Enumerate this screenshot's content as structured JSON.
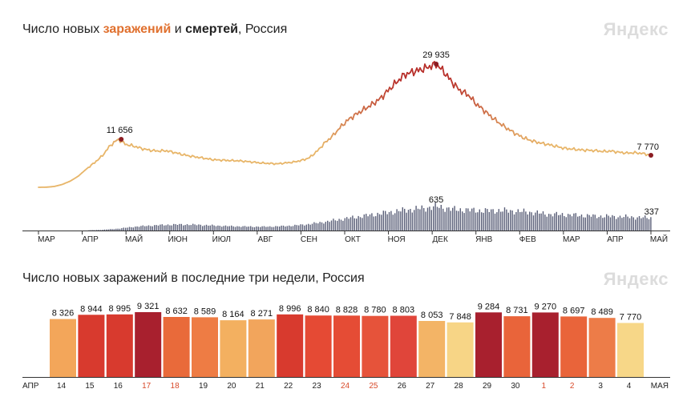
{
  "chart1": {
    "title_prefix": "Число новых ",
    "title_cases": "заражений",
    "title_mid": " и ",
    "title_deaths": "смертей",
    "title_suffix": ", Россия",
    "brand": "Яндекс"
  },
  "chart2": {
    "title": "Число новых заражений в последние три недели, Россия",
    "brand": "Яндекс"
  },
  "colors": {
    "cases_low": "#e8b66a",
    "cases_high": "#b8312c",
    "deaths_bar": "#5a5f78",
    "marker": "#8b1c22",
    "weekend_label": "#d84a2a",
    "axis": "#333333"
  },
  "chart_data": [
    {
      "type": "line",
      "title": "Число новых заражений и смертей, Россия",
      "series": [
        {
          "name": "Новые заражения",
          "weekly_points": [
            [
              0,
              0
            ],
            [
              0.25,
              30
            ],
            [
              0.5,
              200
            ],
            [
              0.75,
              700
            ],
            [
              1,
              1500
            ],
            [
              1.25,
              2700
            ],
            [
              1.5,
              4400
            ],
            [
              1.75,
              5900
            ],
            [
              2,
              7600
            ],
            [
              2.25,
              10100
            ],
            [
              2.5,
              11656
            ],
            [
              2.75,
              10400
            ],
            [
              3,
              10000
            ],
            [
              3.25,
              9400
            ],
            [
              3.5,
              9000
            ],
            [
              3.75,
              8800
            ],
            [
              4,
              8900
            ],
            [
              4.25,
              8500
            ],
            [
              4.5,
              8000
            ],
            [
              4.75,
              7600
            ],
            [
              5,
              7300
            ],
            [
              5.25,
              7000
            ],
            [
              5.5,
              6700
            ],
            [
              5.75,
              6600
            ],
            [
              6,
              6500
            ],
            [
              6.25,
              6450
            ],
            [
              6.5,
              6300
            ],
            [
              6.75,
              6100
            ],
            [
              7,
              5900
            ],
            [
              7.25,
              5800
            ],
            [
              7.5,
              5700
            ],
            [
              7.75,
              5900
            ],
            [
              8,
              6100
            ],
            [
              8.25,
              6500
            ],
            [
              8.5,
              7100
            ],
            [
              8.75,
              8700
            ],
            [
              9,
              10800
            ],
            [
              9.25,
              12500
            ],
            [
              9.5,
              14700
            ],
            [
              9.75,
              16500
            ],
            [
              10,
              17800
            ],
            [
              10.25,
              19000
            ],
            [
              10.5,
              20200
            ],
            [
              10.75,
              21600
            ],
            [
              11,
              23600
            ],
            [
              11.25,
              25500
            ],
            [
              11.5,
              27300
            ],
            [
              11.75,
              28000
            ],
            [
              12,
              28500
            ],
            [
              12.25,
              29200
            ],
            [
              12.5,
              29935
            ],
            [
              12.75,
              28000
            ],
            [
              13,
              25500
            ],
            [
              13.25,
              23500
            ],
            [
              13.5,
              22500
            ],
            [
              13.75,
              20300
            ],
            [
              14,
              18700
            ],
            [
              14.25,
              17000
            ],
            [
              14.5,
              15500
            ],
            [
              14.75,
              14200
            ],
            [
              15,
              13000
            ],
            [
              15.25,
              12000
            ],
            [
              15.5,
              11300
            ],
            [
              15.75,
              10800
            ],
            [
              16,
              10400
            ],
            [
              16.25,
              10000
            ],
            [
              16.5,
              9500
            ],
            [
              16.75,
              9300
            ],
            [
              17,
              9100
            ],
            [
              17.25,
              9000
            ],
            [
              17.5,
              8900
            ],
            [
              17.75,
              8700
            ],
            [
              18,
              8800
            ],
            [
              18.25,
              8500
            ],
            [
              18.5,
              8300
            ],
            [
              18.75,
              8400
            ],
            [
              19,
              8200
            ],
            [
              19.25,
              7770
            ]
          ],
          "peak": 11656,
          "peak_label": "11 656",
          "max": 29935,
          "max_label": "29 935",
          "last": 7770,
          "last_label": "7 770"
        },
        {
          "name": "Смерти",
          "weekly_points": [
            [
              0,
              0
            ],
            [
              0.5,
              0
            ],
            [
              1,
              2
            ],
            [
              1.5,
              6
            ],
            [
              2,
              20
            ],
            [
              2.5,
              50
            ],
            [
              3,
              100
            ],
            [
              3.5,
              130
            ],
            [
              4,
              150
            ],
            [
              4.5,
              160
            ],
            [
              5,
              150
            ],
            [
              5.5,
              130
            ],
            [
              6,
              115
            ],
            [
              6.5,
              105
            ],
            [
              7,
              100
            ],
            [
              7.5,
              110
            ],
            [
              8,
              130
            ],
            [
              8.5,
              170
            ],
            [
              9,
              230
            ],
            [
              9.5,
              300
            ],
            [
              10,
              360
            ],
            [
              10.5,
              420
            ],
            [
              11,
              480
            ],
            [
              11.5,
              540
            ],
            [
              12,
              580
            ],
            [
              12.5,
              635
            ],
            [
              13,
              560
            ],
            [
              13.5,
              540
            ],
            [
              14,
              520
            ],
            [
              14.5,
              530
            ],
            [
              15,
              510
            ],
            [
              15.5,
              480
            ],
            [
              16,
              430
            ],
            [
              16.5,
              420
            ],
            [
              17,
              400
            ],
            [
              17.5,
              380
            ],
            [
              18,
              370
            ],
            [
              18.5,
              360
            ],
            [
              19,
              340
            ],
            [
              19.25,
              337
            ]
          ],
          "max": 635,
          "max_label": "635",
          "last": 337,
          "last_label": "337"
        }
      ],
      "month_labels": [
        "МАР",
        "АПР",
        "МАЙ",
        "ИЮН",
        "ИЮЛ",
        "АВГ",
        "СЕН",
        "ОКТ",
        "НОЯ",
        "ДЕК",
        "ЯНВ",
        "ФЕВ",
        "МАР",
        "АПР",
        "МАЙ"
      ],
      "xlim": [
        0,
        19.25
      ],
      "ylim_cases": [
        0,
        29935
      ],
      "ylim_deaths": [
        0,
        635
      ]
    },
    {
      "type": "bar",
      "title": "Число новых заражений в последние три недели, Россия",
      "categories": [
        "14",
        "15",
        "16",
        "17",
        "18",
        "19",
        "20",
        "21",
        "22",
        "23",
        "24",
        "25",
        "26",
        "27",
        "28",
        "29",
        "30",
        "1",
        "2",
        "3",
        "4"
      ],
      "weekend": [
        false,
        false,
        false,
        true,
        true,
        false,
        false,
        false,
        false,
        false,
        true,
        true,
        false,
        false,
        false,
        false,
        false,
        true,
        true,
        false,
        false
      ],
      "values": [
        8326,
        8944,
        8995,
        9321,
        8632,
        8589,
        8164,
        8271,
        8996,
        8840,
        8828,
        8780,
        8803,
        8053,
        7848,
        9284,
        8731,
        9270,
        8697,
        8489,
        7770
      ],
      "value_labels": [
        "8 326",
        "8 944",
        "8 995",
        "9 321",
        "8 632",
        "8 589",
        "8 164",
        "8 271",
        "8 996",
        "8 840",
        "8 828",
        "8 780",
        "8 803",
        "8 053",
        "7 848",
        "9 284",
        "8 731",
        "9 270",
        "8 697",
        "8 489",
        "7 770"
      ],
      "colors": [
        "#f3a65a",
        "#d83a2e",
        "#d83a2e",
        "#a8202e",
        "#e96a3a",
        "#ee7c44",
        "#f3b060",
        "#f2a55c",
        "#d83a2e",
        "#e54a34",
        "#e54c35",
        "#e6533a",
        "#e0453a",
        "#f3b466",
        "#f7d586",
        "#a8202e",
        "#e9643a",
        "#a8202e",
        "#e9643a",
        "#ed7c48",
        "#f7d788"
      ],
      "axis_left_label": "АПР",
      "axis_right_label": "МАЯ"
    }
  ]
}
